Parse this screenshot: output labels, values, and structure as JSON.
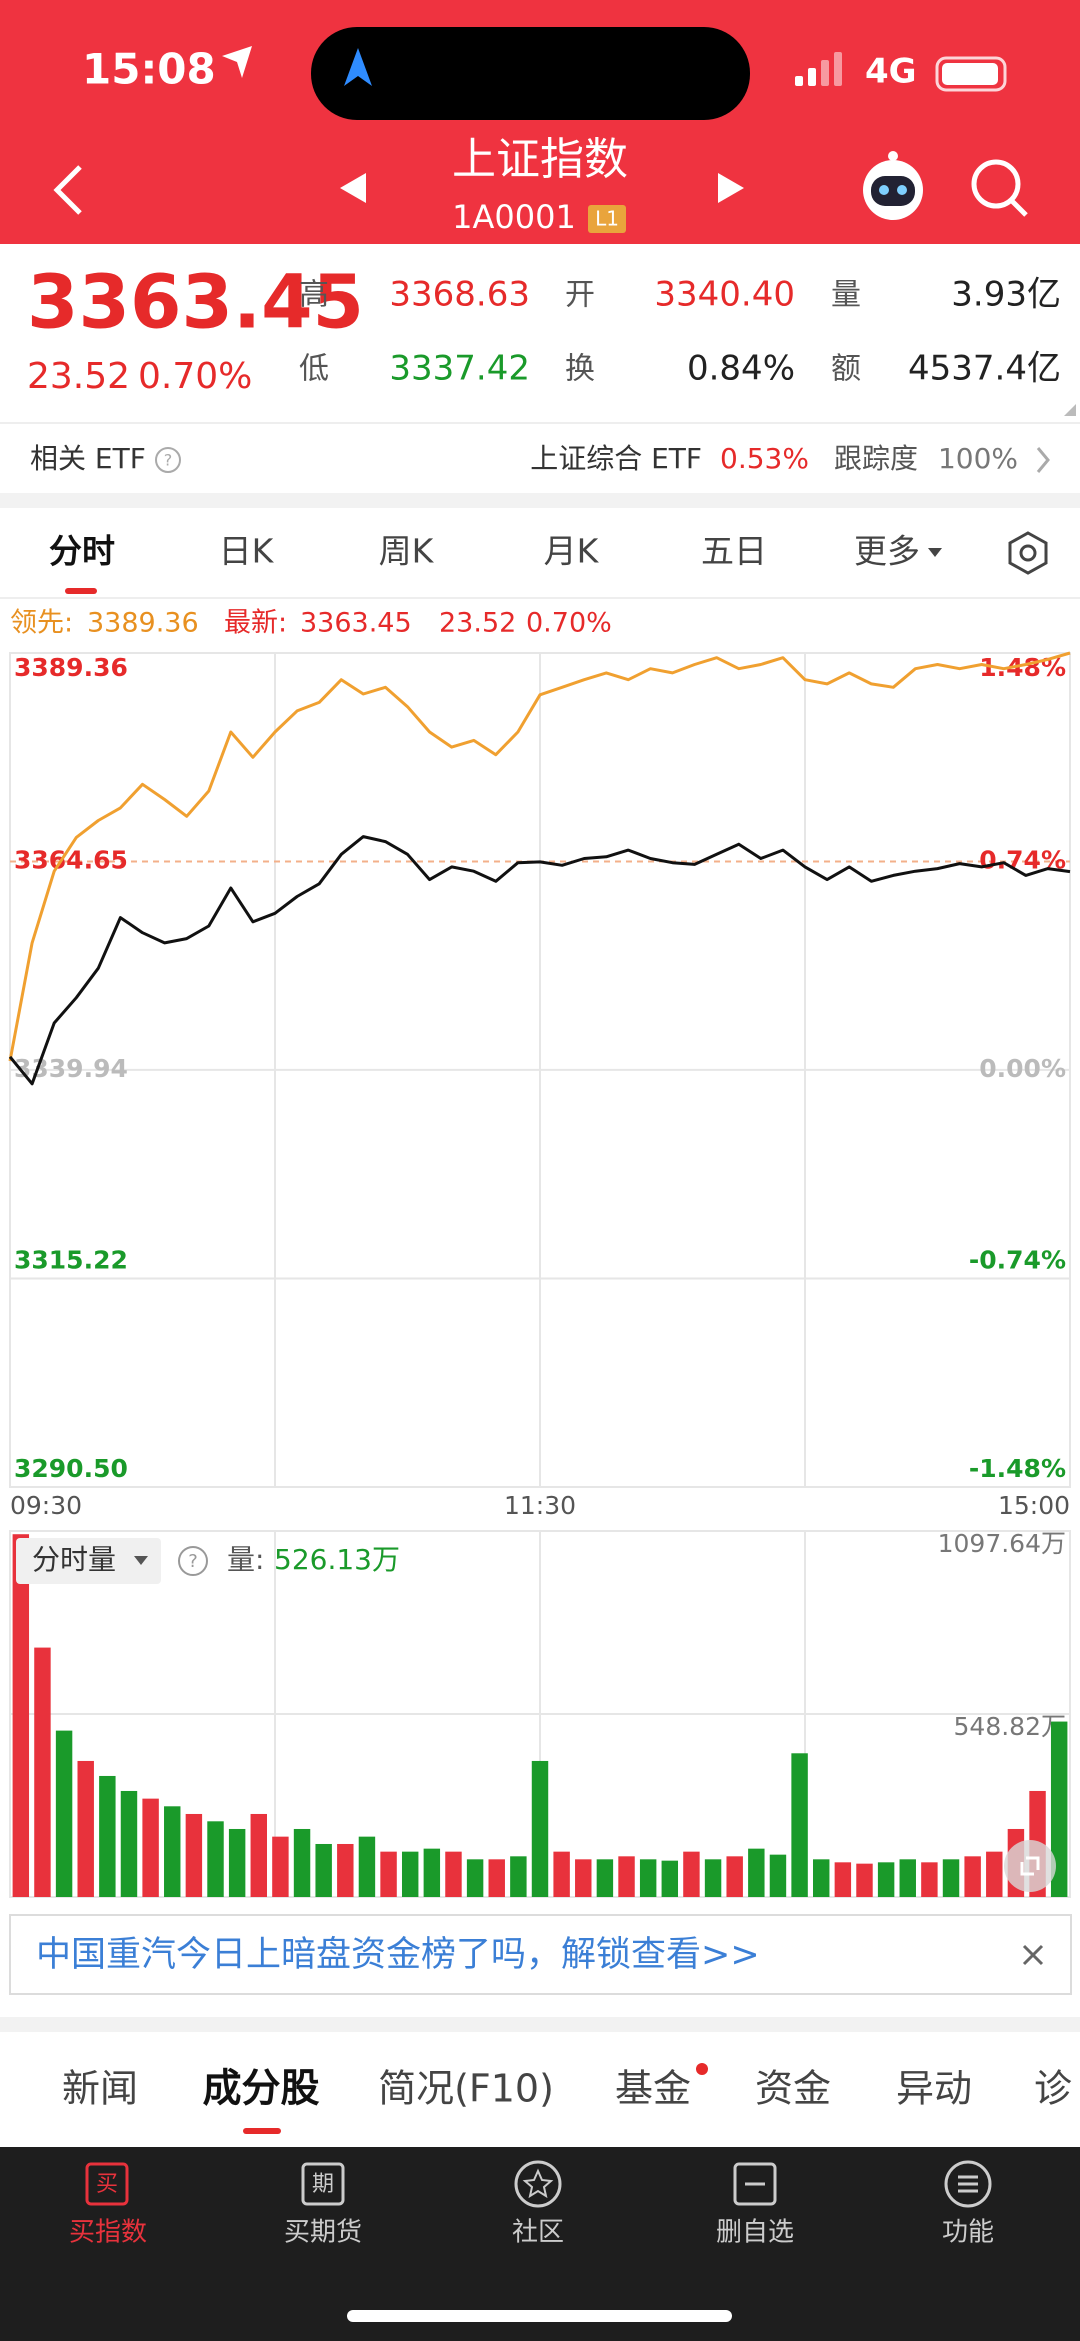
{
  "status_bar": {
    "time": "15:08",
    "network": "4G"
  },
  "header": {
    "title": "上证指数",
    "code": "1A0001",
    "level": "L1"
  },
  "quote": {
    "price": "3363.45",
    "change": "23.52",
    "change_pct": "0.70%",
    "stats": [
      {
        "label": "高",
        "value": "3368.63"
      },
      {
        "label": "开",
        "value": "3340.40"
      },
      {
        "label": "量",
        "value": "3.93亿"
      },
      {
        "label": "低",
        "value": "3337.42"
      },
      {
        "label": "换",
        "value": "0.84%"
      },
      {
        "label": "额",
        "value": "4537.4亿"
      }
    ]
  },
  "etf": {
    "label": "相关 ETF",
    "name": "上证综合 ETF",
    "change": "0.53%",
    "tracking_label": "跟踪度",
    "tracking": "100%"
  },
  "tabs": [
    "分时",
    "日K",
    "周K",
    "月K",
    "五日",
    "更多"
  ],
  "legend": {
    "lead_label": "领先:",
    "lead": "3389.36",
    "latest_label": "最新:",
    "latest": "3363.45",
    "change": "23.52",
    "pct": "0.70%"
  },
  "chart_data": [
    {
      "type": "line",
      "categories": [
        "09:30",
        null,
        null,
        null,
        null,
        null,
        null,
        null,
        null,
        null,
        null,
        null,
        null,
        null,
        null,
        null,
        null,
        null,
        null,
        null,
        null,
        null,
        null,
        null,
        "11:30",
        null,
        null,
        null,
        null,
        null,
        null,
        null,
        null,
        null,
        null,
        null,
        null,
        null,
        null,
        null,
        null,
        null,
        null,
        null,
        null,
        null,
        null,
        null,
        "15:00"
      ],
      "series": [
        {
          "color": "#f0a030",
          "values": [
            3341.0,
            3355.0,
            3363.5,
            3367.5,
            3369.5,
            3371.0,
            3373.8,
            3372.0,
            3370.0,
            3373.0,
            3380.0,
            3377.0,
            3380.0,
            3382.5,
            3383.5,
            3386.2,
            3384.5,
            3385.3,
            3383.0,
            3380.0,
            3378.2,
            3379.0,
            3377.3,
            3380.0,
            3384.4,
            3385.3,
            3386.2,
            3387.0,
            3386.2,
            3387.5,
            3387.0,
            3388.0,
            3388.8,
            3387.5,
            3388.0,
            3388.8,
            3386.2,
            3385.7,
            3387.0,
            3385.7,
            3385.3,
            3387.5,
            3388.0,
            3387.5,
            3388.0,
            3387.5,
            3388.0,
            3388.6,
            3389.36
          ]
        },
        {
          "color": "#111111",
          "values": [
            3341.5,
            3338.3,
            3345.5,
            3348.5,
            3352.0,
            3358.0,
            3356.2,
            3355.0,
            3355.5,
            3357.0,
            3361.5,
            3357.5,
            3358.5,
            3360.5,
            3362.0,
            3365.5,
            3367.6,
            3367.0,
            3365.5,
            3362.5,
            3364.0,
            3363.5,
            3362.3,
            3364.5,
            3364.6,
            3364.2,
            3365.0,
            3365.2,
            3366.0,
            3365.0,
            3364.5,
            3364.3,
            3365.5,
            3366.7,
            3365.0,
            3366.0,
            3364.0,
            3362.5,
            3364.0,
            3362.3,
            3363.0,
            3363.5,
            3363.8,
            3364.4,
            3364.0,
            3364.5,
            3363.0,
            3363.8,
            3363.45
          ]
        }
      ],
      "ylim": [
        3290.5,
        3389.36
      ],
      "yticks": [
        3389.36,
        3364.65,
        3339.94,
        3315.22,
        {
          "value": 3290.5,
          "label": "3290.50"
        }
      ],
      "y2lim": [
        -1.48,
        1.48
      ],
      "y2ticks": [
        {
          "value": 1.48,
          "label": "1.48%"
        },
        {
          "value": 0.74,
          "label": "0.74%"
        },
        {
          "value": 0,
          "label": "0.00%"
        },
        {
          "value": -0.74,
          "label": "-0.74%"
        },
        {
          "value": -1.48,
          "label": "-1.48%"
        }
      ],
      "grid": true
    },
    {
      "type": "bar",
      "values": [
        1088,
        748,
        499,
        408,
        363,
        318,
        295,
        272,
        249,
        227,
        204,
        249,
        181,
        204,
        159,
        159,
        181,
        136,
        136,
        145,
        136,
        113,
        113,
        122,
        408,
        136,
        113,
        113,
        122,
        113,
        109,
        136,
        113,
        122,
        145,
        127,
        431,
        113,
        104,
        100,
        104,
        113,
        104,
        113,
        122,
        136,
        204,
        318,
        526.13
      ],
      "colors": [
        "#e8323c",
        "#e8323c",
        "#1a9a2a",
        "#e8323c",
        "#1a9a2a",
        "#1a9a2a",
        "#e8323c",
        "#1a9a2a",
        "#e8323c",
        "#1a9a2a",
        "#1a9a2a",
        "#e8323c",
        "#e8323c",
        "#1a9a2a",
        "#1a9a2a",
        "#e8323c",
        "#1a9a2a",
        "#e8323c",
        "#1a9a2a",
        "#1a9a2a",
        "#e8323c",
        "#1a9a2a",
        "#e8323c",
        "#1a9a2a",
        "#1a9a2a",
        "#e8323c",
        "#e8323c",
        "#1a9a2a",
        "#e8323c",
        "#1a9a2a",
        "#1a9a2a",
        "#e8323c",
        "#1a9a2a",
        "#e8323c",
        "#1a9a2a",
        "#1a9a2a",
        "#1a9a2a",
        "#1a9a2a",
        "#e8323c",
        "#e8323c",
        "#1a9a2a",
        "#1a9a2a",
        "#e8323c",
        "#1a9a2a",
        "#e8323c",
        "#e8323c",
        "#e8323c",
        "#e8323c",
        "#1a9a2a"
      ],
      "ylim": [
        0,
        1097.64
      ],
      "yticks": [
        {
          "value": 548.82,
          "label": "548.82万"
        },
        {
          "value": 1097.64,
          "label": "1097.64万"
        }
      ],
      "grid": true
    }
  ],
  "volume_header": {
    "selector": "分时量",
    "label": "量:",
    "value": "526.13万"
  },
  "banner": "中国重汽今日上暗盘资金榜了吗，解锁查看>>",
  "section_tabs": [
    "新闻",
    "成分股",
    "简况(F10)",
    "基金",
    "资金",
    "异动",
    "诊"
  ],
  "nav": [
    {
      "label": "买指数",
      "icon": "买"
    },
    {
      "label": "买期货",
      "icon": "期"
    },
    {
      "label": "社区"
    },
    {
      "label": "删自选"
    },
    {
      "label": "功能"
    }
  ]
}
